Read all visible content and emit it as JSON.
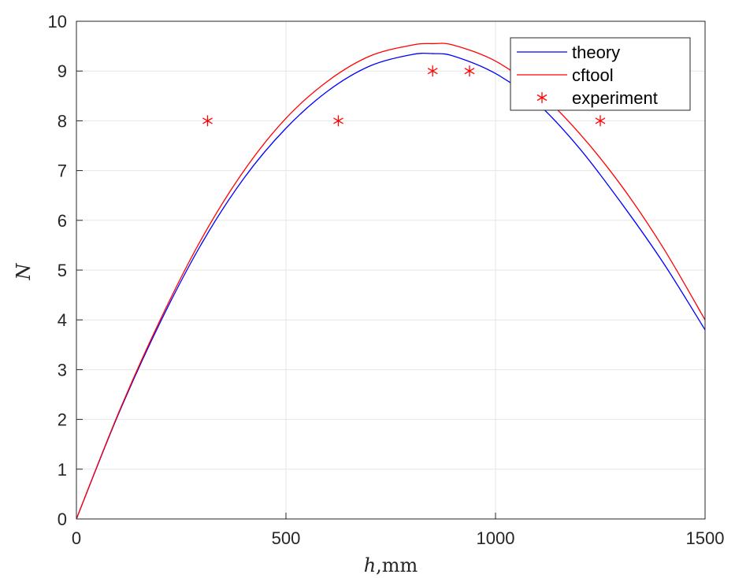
{
  "chart_data": {
    "type": "line",
    "xlabel_var": "h",
    "xlabel_unit": ",mm",
    "ylabel": "N",
    "xlim": [
      0,
      1500
    ],
    "ylim": [
      0,
      10
    ],
    "x_ticks": [
      0,
      500,
      1000,
      1500
    ],
    "y_ticks": [
      0,
      1,
      2,
      3,
      4,
      5,
      6,
      7,
      8,
      9,
      10
    ],
    "grid": true,
    "legend_position": "top-right",
    "series": [
      {
        "name": "theory",
        "kind": "line",
        "color": "#0000ff",
        "x": [
          0,
          100,
          200,
          300,
          400,
          500,
          600,
          700,
          800,
          850,
          900,
          1000,
          1100,
          1200,
          1300,
          1400,
          1500
        ],
        "y": [
          0,
          2.1,
          3.95,
          5.55,
          6.85,
          7.85,
          8.6,
          9.1,
          9.33,
          9.35,
          9.3,
          8.95,
          8.35,
          7.45,
          6.35,
          5.15,
          3.8
        ]
      },
      {
        "name": "cftool",
        "kind": "line",
        "color": "#ff0000",
        "x": [
          0,
          100,
          200,
          300,
          400,
          500,
          600,
          700,
          800,
          850,
          900,
          1000,
          1100,
          1200,
          1300,
          1400,
          1500
        ],
        "y": [
          0,
          2.12,
          4.0,
          5.65,
          7.0,
          8.05,
          8.8,
          9.3,
          9.52,
          9.55,
          9.52,
          9.2,
          8.6,
          7.75,
          6.7,
          5.45,
          4.0
        ]
      },
      {
        "name": "experiment",
        "kind": "marker",
        "color": "#ff0000",
        "x": [
          313,
          625,
          850,
          938,
          1250
        ],
        "y": [
          8,
          8,
          9,
          9,
          8
        ]
      }
    ]
  }
}
